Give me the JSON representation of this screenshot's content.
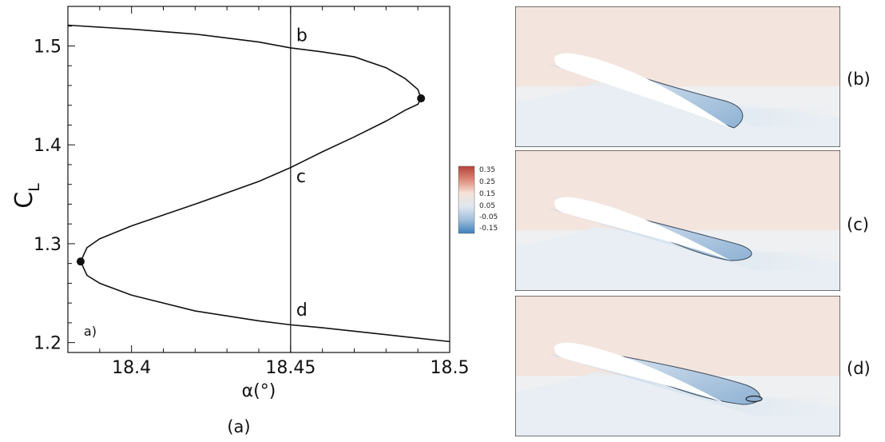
{
  "chart_data": {
    "type": "line",
    "xlabel": "α(°)",
    "ylabel": "C",
    "ylabel_subscript": "L",
    "xlim": [
      18.38,
      18.5
    ],
    "ylim": [
      1.19,
      1.54
    ],
    "x_ticks": [
      18.4,
      18.45,
      18.5
    ],
    "x_tick_labels": [
      "18.4",
      "18.45",
      "18.5"
    ],
    "y_ticks": [
      1.2,
      1.3,
      1.4,
      1.5
    ],
    "y_tick_labels": [
      "1.2",
      "1.3",
      "1.4",
      "1.5"
    ],
    "grid": false,
    "series": [
      {
        "x": [
          18.5,
          18.48,
          18.46,
          18.45,
          18.44,
          18.42,
          18.4,
          18.39,
          18.386,
          18.384,
          18.386,
          18.39,
          18.4,
          18.42,
          18.44,
          18.45,
          18.46,
          18.47,
          18.48,
          18.486,
          18.49,
          18.491,
          18.49,
          18.486,
          18.48,
          18.47,
          18.46,
          18.45,
          18.44,
          18.42,
          18.4,
          18.38
        ],
        "y": [
          1.201,
          1.208,
          1.215,
          1.218,
          1.222,
          1.232,
          1.248,
          1.26,
          1.268,
          1.282,
          1.296,
          1.305,
          1.318,
          1.34,
          1.363,
          1.377,
          1.393,
          1.408,
          1.424,
          1.435,
          1.441,
          1.447,
          1.456,
          1.467,
          1.478,
          1.489,
          1.494,
          1.498,
          1.504,
          1.512,
          1.517,
          1.521
        ]
      }
    ],
    "fold_points": [
      {
        "x": 18.384,
        "y": 1.282
      },
      {
        "x": 18.491,
        "y": 1.447
      }
    ],
    "reference_line_x": 18.45,
    "annotations": [
      {
        "text": "b",
        "x": 18.4505,
        "y": 1.505
      },
      {
        "text": "c",
        "x": 18.4505,
        "y": 1.362
      },
      {
        "text": "d",
        "x": 18.4505,
        "y": 1.227
      },
      {
        "text": "a)",
        "x": 18.385,
        "y": 1.207
      }
    ]
  },
  "figure": {
    "panel_a_caption": "(a)",
    "panel_labels": [
      "(b)",
      "(c)",
      "(d)"
    ],
    "colorbar": {
      "labels": [
        "0.35",
        "0.25",
        "0.15",
        "0.05",
        "-0.05",
        "-0.15"
      ],
      "colors": [
        "#b5433a",
        "#dd8a7a",
        "#f6e2d8",
        "#dfe7f0",
        "#9fbedb",
        "#3d7fba"
      ]
    }
  }
}
